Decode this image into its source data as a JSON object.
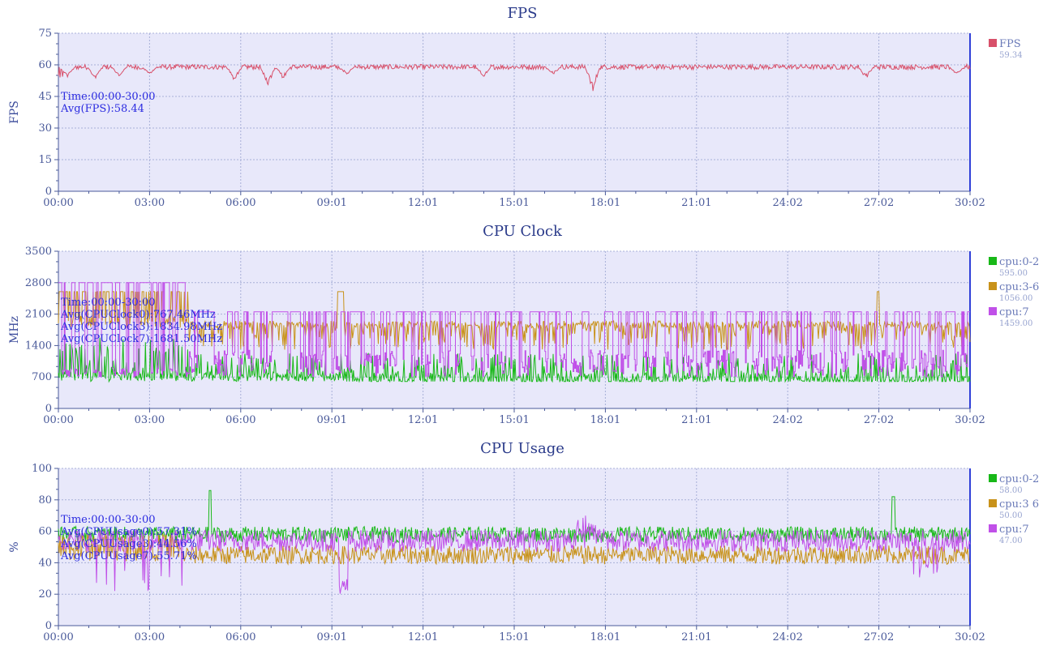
{
  "chart_data": [
    {
      "id": "fps",
      "type": "line",
      "title": "FPS",
      "ylabel": "FPS",
      "ylim": [
        0,
        75
      ],
      "yticks": [
        0,
        15,
        30,
        45,
        60,
        75
      ],
      "xlim_minutes": [
        0,
        30.03
      ],
      "xticks": [
        "00:00",
        "03:00",
        "06:00",
        "09:01",
        "12:01",
        "15:01",
        "18:01",
        "21:01",
        "24:02",
        "27:02",
        "30:02"
      ],
      "grid": true,
      "legend_position": "right",
      "annotations": [
        "Time:00:00-30:00",
        "Avg(FPS):58.44"
      ],
      "series": [
        {
          "name": "FPS",
          "legend_value": "59.34",
          "color": "#d8506a",
          "base": 59,
          "noise": 1.2,
          "dips": [
            [
              0.3,
              54
            ],
            [
              1.2,
              53
            ],
            [
              2.0,
              54
            ],
            [
              3.0,
              55
            ],
            [
              5.8,
              52
            ],
            [
              6.9,
              49
            ],
            [
              7.4,
              53
            ],
            [
              9.5,
              55
            ],
            [
              14.0,
              54
            ],
            [
              16.3,
              55
            ],
            [
              17.6,
              47
            ],
            [
              26.6,
              53
            ],
            [
              29.6,
              55
            ]
          ]
        }
      ]
    },
    {
      "id": "cpu-clock",
      "type": "line",
      "title": "CPU Clock",
      "ylabel": "MHz",
      "ylim": [
        0,
        3500
      ],
      "yticks": [
        0,
        700,
        1400,
        2100,
        2800,
        3500
      ],
      "xlim_minutes": [
        0,
        30.03
      ],
      "xticks": [
        "00:00",
        "03:00",
        "06:00",
        "09:01",
        "12:01",
        "15:01",
        "18:01",
        "21:01",
        "24:02",
        "27:02",
        "30:02"
      ],
      "grid": true,
      "legend_position": "right",
      "annotations": [
        "Time:00:00-30:00",
        "Avg(CPUClock0):767.46MHz",
        "Avg(CPUClock3):1834.98MHz",
        "Avg(CPUClock7):1681.50MHz"
      ],
      "series": [
        {
          "name": "cpu:0-2",
          "legend_value": "595.00",
          "color": "#18b818",
          "low": 600,
          "high": 1300,
          "style": "spiky-low"
        },
        {
          "name": "cpu:3-6",
          "legend_value": "1056.00",
          "color": "#c8921a",
          "low": 1300,
          "high": 1950,
          "style": "band"
        },
        {
          "name": "cpu:7",
          "legend_value": "1459.00",
          "color": "#c050e8",
          "low": 700,
          "high": 2150,
          "style": "square"
        }
      ]
    },
    {
      "id": "cpu-usage",
      "type": "line",
      "title": "CPU Usage",
      "ylabel": "%",
      "ylim": [
        0,
        100
      ],
      "yticks": [
        0,
        20,
        40,
        60,
        80,
        100
      ],
      "xlim_minutes": [
        0,
        30.03
      ],
      "xticks": [
        "00:00",
        "03:00",
        "06:00",
        "09:01",
        "12:01",
        "15:01",
        "18:01",
        "21:01",
        "24:02",
        "27:02",
        "30:02"
      ],
      "grid": true,
      "legend_position": "right",
      "annotations": [
        "Time:00:00-30:00",
        "Avg(CPUUsage0):57.31%",
        "Avg(CPUUsage3):44.56%",
        "Avg(CPUUsage7):55.71%"
      ],
      "series": [
        {
          "name": "cpu:0-2",
          "legend_value": "58.00",
          "color": "#18b818",
          "mean": 58,
          "noise": 5
        },
        {
          "name": "cpu:3 6",
          "legend_value": "50.00",
          "color": "#c8921a",
          "mean": 45,
          "noise": 6
        },
        {
          "name": "cpu:7",
          "legend_value": "47.00",
          "color": "#c050e8",
          "mean": 54,
          "noise": 7
        }
      ]
    }
  ]
}
